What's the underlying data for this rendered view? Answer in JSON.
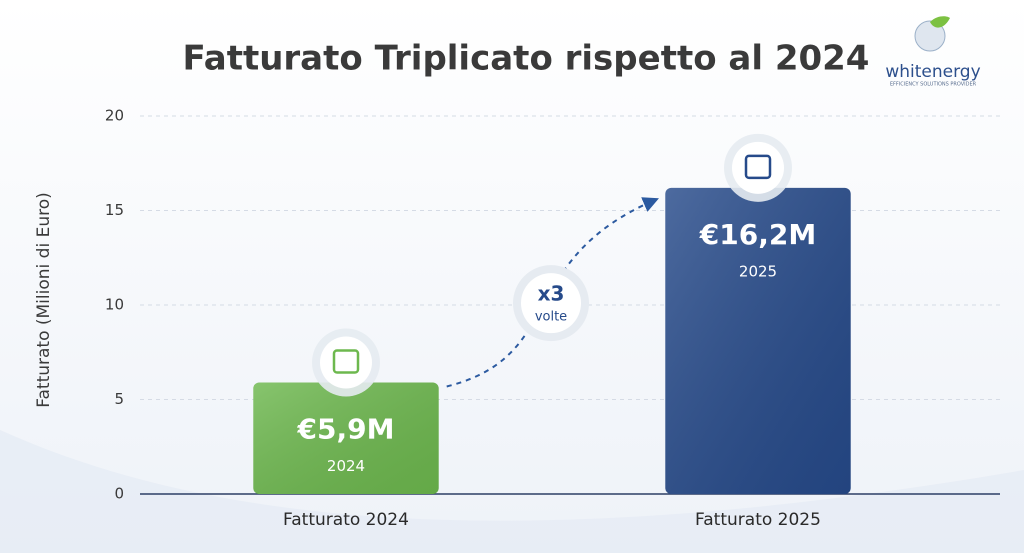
{
  "chart_data": {
    "type": "bar",
    "title": "Fatturato Triplicato rispetto al 2024",
    "y_label": "Fatturato (Milioni di Euro)",
    "categories": [
      "Fatturato 2024",
      "Fatturato 2025"
    ],
    "values": [
      5.9,
      16.2
    ],
    "value_labels": [
      "€5,9M",
      "€16,2M"
    ],
    "sublabels": [
      "2024",
      "2025"
    ],
    "colors": [
      "#6db84e",
      "#264a8a"
    ],
    "ylim": [
      0,
      20
    ],
    "yticks": [
      0,
      5,
      10,
      15,
      20
    ],
    "grid": true,
    "annotation": {
      "text": "x3",
      "subtext": "volte"
    }
  },
  "logo": {
    "name": "whitenergy",
    "tagline": "EFFICIENCY SOLUTIONS PROVIDER"
  }
}
